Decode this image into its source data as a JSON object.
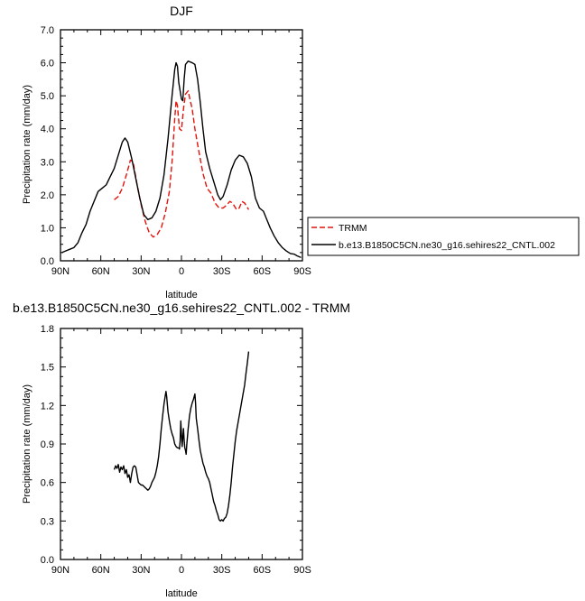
{
  "chart_data": [
    {
      "type": "line",
      "title": "DJF",
      "xlabel": "latitude",
      "ylabel": "Precipitation rate (mm/day)",
      "xlim": [
        90,
        -90
      ],
      "ylim": [
        0.0,
        7.0
      ],
      "x_ticks": [
        90,
        60,
        30,
        0,
        -30,
        -60,
        -90
      ],
      "x_tick_labels": [
        "90N",
        "60N",
        "30N",
        "0",
        "30S",
        "60S",
        "90S"
      ],
      "y_ticks": [
        0,
        1,
        2,
        3,
        4,
        5,
        6,
        7
      ],
      "y_tick_labels": [
        "0.0",
        "1.0",
        "2.0",
        "3.0",
        "4.0",
        "5.0",
        "6.0",
        "7.0"
      ],
      "legend_placement": "right, outside plot",
      "series": [
        {
          "name": "TRMM",
          "color": "#e3120b",
          "dash": "dashed",
          "points": [
            [
              50,
              1.85
            ],
            [
              47,
              1.95
            ],
            [
              44,
              2.2
            ],
            [
              41,
              2.6
            ],
            [
              38,
              3.05
            ],
            [
              36,
              3.0
            ],
            [
              33,
              2.3
            ],
            [
              30,
              1.7
            ],
            [
              27,
              1.2
            ],
            [
              24,
              0.85
            ],
            [
              21,
              0.72
            ],
            [
              18,
              0.8
            ],
            [
              15,
              1.0
            ],
            [
              12,
              1.45
            ],
            [
              9,
              2.1
            ],
            [
              7,
              3.0
            ],
            [
              5,
              4.3
            ],
            [
              4,
              4.85
            ],
            [
              3,
              4.7
            ],
            [
              1.5,
              4.0
            ],
            [
              0,
              3.95
            ],
            [
              -1.5,
              4.6
            ],
            [
              -3,
              5.05
            ],
            [
              -5,
              5.15
            ],
            [
              -6,
              4.95
            ],
            [
              -8,
              4.6
            ],
            [
              -10,
              4.0
            ],
            [
              -13,
              3.3
            ],
            [
              -16,
              2.65
            ],
            [
              -19,
              2.2
            ],
            [
              -22,
              2.05
            ],
            [
              -25,
              1.75
            ],
            [
              -28,
              1.6
            ],
            [
              -31,
              1.6
            ],
            [
              -34,
              1.7
            ],
            [
              -36,
              1.8
            ],
            [
              -38,
              1.75
            ],
            [
              -41,
              1.55
            ],
            [
              -43,
              1.6
            ],
            [
              -45,
              1.8
            ],
            [
              -47,
              1.75
            ],
            [
              -50,
              1.55
            ]
          ]
        },
        {
          "name": "b.e13.B1850C5CN.ne30_g16.sehires22_CNTL.002",
          "color": "#000000",
          "dash": "solid",
          "points": [
            [
              89,
              0.25
            ],
            [
              86,
              0.3
            ],
            [
              83,
              0.35
            ],
            [
              80,
              0.4
            ],
            [
              77,
              0.55
            ],
            [
              74,
              0.85
            ],
            [
              71,
              1.1
            ],
            [
              68,
              1.5
            ],
            [
              65,
              1.8
            ],
            [
              62,
              2.1
            ],
            [
              59,
              2.2
            ],
            [
              56,
              2.3
            ],
            [
              53,
              2.55
            ],
            [
              50,
              2.8
            ],
            [
              47,
              3.2
            ],
            [
              44,
              3.6
            ],
            [
              42,
              3.72
            ],
            [
              40,
              3.6
            ],
            [
              37,
              3.1
            ],
            [
              34,
              2.5
            ],
            [
              31,
              1.9
            ],
            [
              28,
              1.4
            ],
            [
              25,
              1.25
            ],
            [
              22,
              1.3
            ],
            [
              19,
              1.5
            ],
            [
              16,
              1.9
            ],
            [
              13,
              2.6
            ],
            [
              10,
              3.7
            ],
            [
              7,
              5.0
            ],
            [
              5,
              5.8
            ],
            [
              4,
              6.0
            ],
            [
              3,
              5.9
            ],
            [
              2,
              5.4
            ],
            [
              0,
              4.9
            ],
            [
              -1,
              4.85
            ],
            [
              -2,
              5.5
            ],
            [
              -3,
              5.95
            ],
            [
              -5,
              6.05
            ],
            [
              -8,
              6.0
            ],
            [
              -10,
              5.95
            ],
            [
              -12,
              5.5
            ],
            [
              -14,
              4.8
            ],
            [
              -16,
              4.0
            ],
            [
              -18,
              3.3
            ],
            [
              -21,
              2.8
            ],
            [
              -24,
              2.4
            ],
            [
              -27,
              2.0
            ],
            [
              -29,
              1.85
            ],
            [
              -31,
              1.95
            ],
            [
              -34,
              2.3
            ],
            [
              -37,
              2.75
            ],
            [
              -40,
              3.05
            ],
            [
              -43,
              3.2
            ],
            [
              -46,
              3.15
            ],
            [
              -49,
              2.95
            ],
            [
              -52,
              2.55
            ],
            [
              -55,
              1.9
            ],
            [
              -58,
              1.6
            ],
            [
              -61,
              1.5
            ],
            [
              -63,
              1.3
            ],
            [
              -66,
              1.0
            ],
            [
              -69,
              0.75
            ],
            [
              -72,
              0.55
            ],
            [
              -75,
              0.4
            ],
            [
              -78,
              0.3
            ],
            [
              -81,
              0.22
            ],
            [
              -84,
              0.2
            ],
            [
              -86,
              0.15
            ],
            [
              -89,
              0.1
            ]
          ]
        }
      ]
    },
    {
      "type": "line",
      "title": "b.e13.B1850C5CN.ne30_g16.sehires22_CNTL.002 - TRMM",
      "xlabel": "latitude",
      "ylabel": "Precipitation rate (mm/day)",
      "xlim": [
        90,
        -90
      ],
      "ylim": [
        0.0,
        1.8
      ],
      "x_ticks": [
        90,
        60,
        30,
        0,
        -30,
        -60,
        -90
      ],
      "x_tick_labels": [
        "90N",
        "60N",
        "30N",
        "0",
        "30S",
        "60S",
        "90S"
      ],
      "y_ticks": [
        0.0,
        0.3,
        0.6,
        0.9,
        1.2,
        1.5,
        1.8
      ],
      "y_tick_labels": [
        "0.0",
        "0.3",
        "0.6",
        "0.9",
        "1.2",
        "1.5",
        "1.8"
      ],
      "series": [
        {
          "color": "#000000",
          "dash": "solid",
          "points": [
            [
              50,
              0.7
            ],
            [
              49,
              0.73
            ],
            [
              48,
              0.71
            ],
            [
              47,
              0.74
            ],
            [
              46,
              0.68
            ],
            [
              45,
              0.72
            ],
            [
              44,
              0.7
            ],
            [
              43,
              0.73
            ],
            [
              42,
              0.67
            ],
            [
              41,
              0.7
            ],
            [
              40,
              0.64
            ],
            [
              39,
              0.66
            ],
            [
              38,
              0.6
            ],
            [
              37,
              0.67
            ],
            [
              36,
              0.72
            ],
            [
              35,
              0.73
            ],
            [
              34,
              0.72
            ],
            [
              33,
              0.66
            ],
            [
              32,
              0.6
            ],
            [
              31,
              0.59
            ],
            [
              30,
              0.58
            ],
            [
              29,
              0.58
            ],
            [
              28,
              0.57
            ],
            [
              27,
              0.56
            ],
            [
              26,
              0.55
            ],
            [
              25,
              0.54
            ],
            [
              24,
              0.55
            ],
            [
              23,
              0.57
            ],
            [
              22,
              0.6
            ],
            [
              21,
              0.62
            ],
            [
              20,
              0.64
            ],
            [
              19,
              0.68
            ],
            [
              18,
              0.73
            ],
            [
              17,
              0.8
            ],
            [
              16,
              0.9
            ],
            [
              15,
              1.02
            ],
            [
              14,
              1.12
            ],
            [
              13,
              1.21
            ],
            [
              12,
              1.28
            ],
            [
              11.5,
              1.31
            ],
            [
              11,
              1.27
            ],
            [
              10,
              1.15
            ],
            [
              9,
              1.08
            ],
            [
              8,
              1.02
            ],
            [
              7,
              0.98
            ],
            [
              6,
              0.95
            ],
            [
              5,
              0.9
            ],
            [
              4,
              0.88
            ],
            [
              3,
              0.87
            ],
            [
              2,
              0.87
            ],
            [
              1.5,
              0.86
            ],
            [
              1,
              0.92
            ],
            [
              0.5,
              1.08
            ],
            [
              0,
              0.98
            ],
            [
              -0.5,
              0.88
            ],
            [
              -1,
              0.95
            ],
            [
              -1.5,
              1.02
            ],
            [
              -2,
              0.93
            ],
            [
              -2.5,
              0.87
            ],
            [
              -3,
              0.85
            ],
            [
              -3.5,
              0.82
            ],
            [
              -4,
              0.9
            ],
            [
              -5,
              1.02
            ],
            [
              -6,
              1.12
            ],
            [
              -7,
              1.18
            ],
            [
              -8,
              1.22
            ],
            [
              -9,
              1.25
            ],
            [
              -10,
              1.29
            ],
            [
              -10.5,
              1.22
            ],
            [
              -11,
              1.1
            ],
            [
              -12,
              1.02
            ],
            [
              -13,
              0.93
            ],
            [
              -14,
              0.85
            ],
            [
              -15,
              0.8
            ],
            [
              -16,
              0.75
            ],
            [
              -17,
              0.72
            ],
            [
              -18,
              0.68
            ],
            [
              -19,
              0.65
            ],
            [
              -20,
              0.63
            ],
            [
              -21,
              0.6
            ],
            [
              -22,
              0.55
            ],
            [
              -23,
              0.5
            ],
            [
              -24,
              0.45
            ],
            [
              -25,
              0.42
            ],
            [
              -26,
              0.38
            ],
            [
              -27,
              0.35
            ],
            [
              -28,
              0.31
            ],
            [
              -29,
              0.3
            ],
            [
              -30,
              0.31
            ],
            [
              -31,
              0.3
            ],
            [
              -32,
              0.32
            ],
            [
              -33,
              0.33
            ],
            [
              -34,
              0.36
            ],
            [
              -35,
              0.42
            ],
            [
              -36,
              0.5
            ],
            [
              -37,
              0.6
            ],
            [
              -38,
              0.72
            ],
            [
              -39,
              0.82
            ],
            [
              -40,
              0.92
            ],
            [
              -41,
              1.0
            ],
            [
              -42,
              1.06
            ],
            [
              -43,
              1.12
            ],
            [
              -44,
              1.18
            ],
            [
              -45,
              1.24
            ],
            [
              -46,
              1.3
            ],
            [
              -47,
              1.36
            ],
            [
              -48,
              1.45
            ],
            [
              -49,
              1.53
            ],
            [
              -50,
              1.62
            ]
          ]
        }
      ]
    }
  ]
}
